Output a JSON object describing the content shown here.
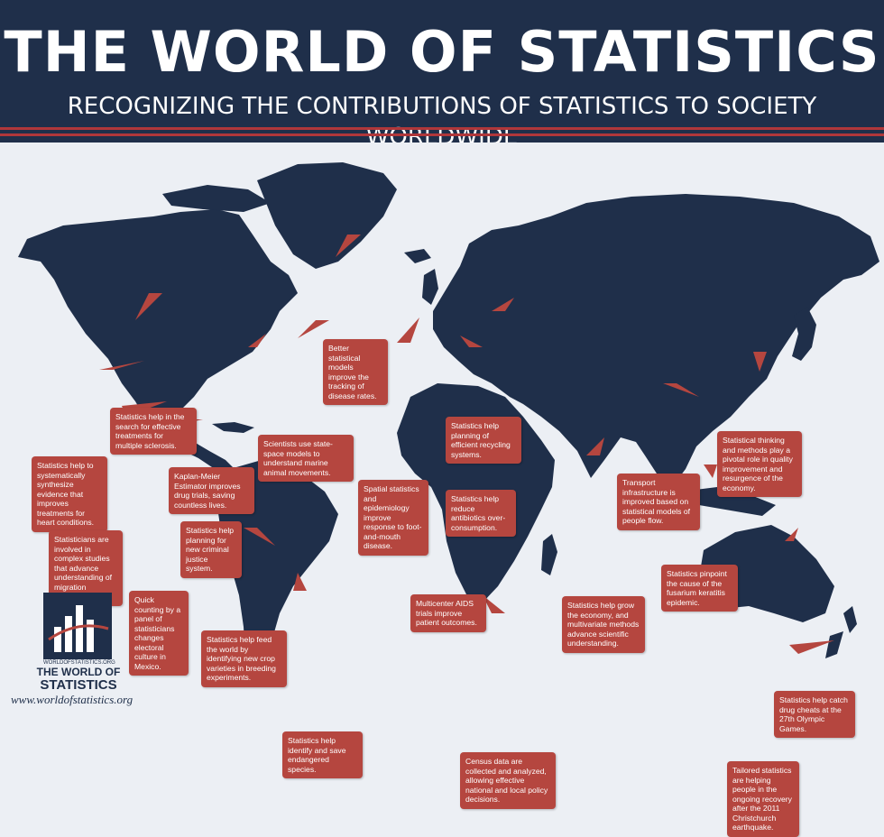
{
  "header": {
    "title": "THE WORLD OF STATISTICS",
    "subtitle": "RECOGNIZING THE CONTRIBUTIONS OF STATISTICS TO SOCIETY WORLDWIDE"
  },
  "colors": {
    "navy": "#1f2f4a",
    "callout": "#b5463f",
    "background": "#eceff4"
  },
  "callouts": {
    "greenland": "Better statistical models improve the tracking of disease rates.",
    "ms": "Statistics help in the search for effective treatments for multiple sclerosis.",
    "marine": "Scientists use state-space models to understand marine animal movements.",
    "heart": "Statistics help to systematically synthesize evidence that improves treatments for heart conditions.",
    "kaplan": "Kaplan-Meier Estimator improves drug trials, saving countless lives.",
    "migration": "Statisticians are involved in complex studies that advance understanding of migration patterns.",
    "justice": "Statistics help planning for new criminal justice system.",
    "mexico": "Quick counting by a panel of statisticians changes electoral culture in Mexico.",
    "crops": "Statistics help feed the world by identifying new crop varieties in breeding experiments.",
    "species": "Statistics help identify and save endangered species.",
    "spatial": "Spatial statistics and epidemiology improve response to foot-and-mouth disease.",
    "recycling": "Statistics help planning of efficient recycling systems.",
    "antibiotics": "Statistics help reduce antibiotics over-consumption.",
    "aids": "Multicenter AIDS trials improve patient outcomes.",
    "census": "Census data are collected and analyzed, allowing effective national and local policy decisions.",
    "india": "Statistics help grow the economy, and multivariate methods advance scientific understanding.",
    "transport": "Transport infrastructure is improved based on statistical models of people flow.",
    "japan": "Statistical thinking and methods play a pivotal role in quality improvement and resurgence of the economy.",
    "fusarium": "Statistics pinpoint the cause of the fusarium keratitis epidemic.",
    "olympic": "Statistics help catch drug cheats at the 27th Olympic Games.",
    "christchurch": "Tailored statistics are helping people in the ongoing recovery after the 2011 Christchurch earthquake."
  },
  "logo": {
    "small": "WORLDOFSTATISTICS.ORG",
    "line1": "THE WORLD OF",
    "line2": "STATISTICS"
  },
  "footer": {
    "url": "www.worldofstatistics.org"
  }
}
